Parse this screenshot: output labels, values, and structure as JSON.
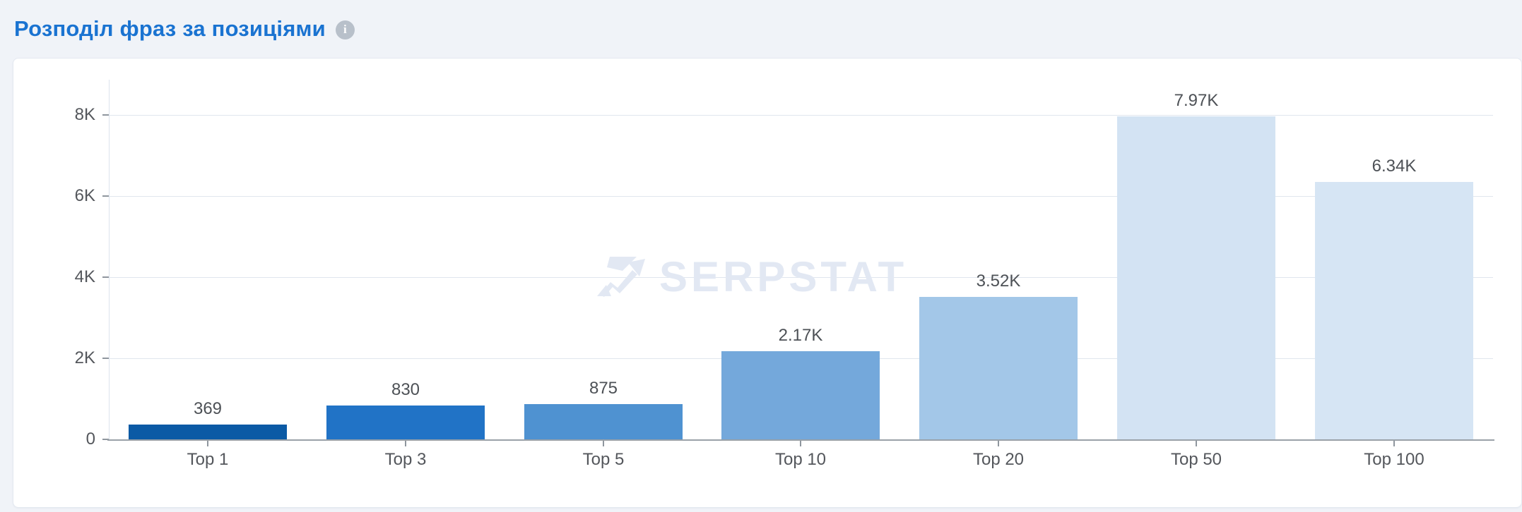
{
  "header": {
    "title": "Розподіл фраз за позиціями",
    "info_icon_glyph": "i"
  },
  "colors": {
    "title_link": "#1a73d1",
    "card_background": "#ffffff",
    "page_background": "#f0f3f8",
    "grid": "#e0e6ee",
    "axis_line": "#dce3ed",
    "baseline": "#9aa1a8",
    "tick": "#8f969e",
    "axis_label": "#54575c",
    "value_label": "#4d5156",
    "watermark": "#e2e8f3",
    "info_badge": "#b8c0ca"
  },
  "chart_data": {
    "type": "bar",
    "title": "Розподіл фраз за позиціями",
    "categories": [
      "Top 1",
      "Top 3",
      "Top 5",
      "Top 10",
      "Top 20",
      "Top 50",
      "Top 100"
    ],
    "values": [
      369,
      830,
      875,
      2170,
      3520,
      7970,
      6340
    ],
    "value_labels": [
      "369",
      "830",
      "875",
      "2.17K",
      "3.52K",
      "7.97K",
      "6.34K"
    ],
    "bar_colors": [
      "#0b5aa5",
      "#2173c6",
      "#4f92d1",
      "#74a8db",
      "#a3c7e8",
      "#d3e3f3",
      "#d6e5f4"
    ],
    "xlabel": "",
    "ylabel": "",
    "ylim": [
      0,
      8000
    ],
    "yticks": [
      {
        "value": 0,
        "label": "0"
      },
      {
        "value": 2000,
        "label": "2K"
      },
      {
        "value": 4000,
        "label": "4K"
      },
      {
        "value": 6000,
        "label": "6K"
      },
      {
        "value": 8000,
        "label": "8K"
      }
    ],
    "grid": true,
    "legend": false,
    "watermark_text": "SERPSTAT"
  }
}
